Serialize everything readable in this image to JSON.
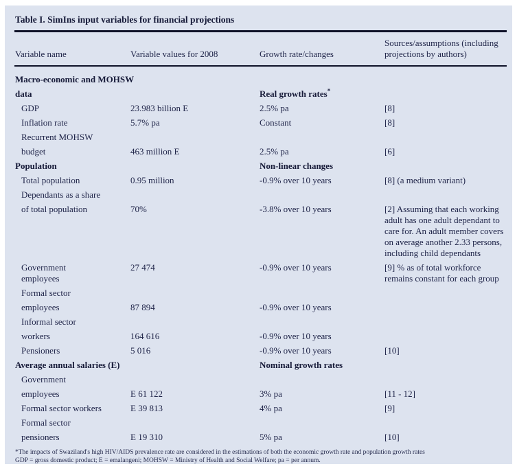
{
  "colors": {
    "panel_background": "#dde3ef",
    "text": "#21264a",
    "rule": "#0f1228"
  },
  "table": {
    "title": "Table I. SimIns input variables for financial projections",
    "columns": [
      "Variable name",
      "Variable values for 2008",
      "Growth rate/changes",
      "Sources/assumptions (including\nprojections by authors)"
    ],
    "rows": [
      {
        "cells": [
          "Macro-economic and MOHSW",
          "",
          "",
          ""
        ],
        "bold": true
      },
      {
        "cells": [
          "data",
          "",
          "Real growth rates*",
          ""
        ],
        "bold": true
      },
      {
        "cells": [
          "GDP",
          "23.983 billion E",
          "2.5% pa",
          "[8]"
        ],
        "indent": true
      },
      {
        "cells": [
          "Inflation rate",
          "5.7% pa",
          "Constant",
          "[8]"
        ],
        "indent": true
      },
      {
        "cells": [
          "Recurrent MOHSW",
          "",
          "",
          ""
        ],
        "indent": true
      },
      {
        "cells": [
          "budget",
          "463 million E",
          "2.5% pa",
          "[6]"
        ],
        "indent": true
      },
      {
        "cells": [
          "Population",
          "",
          "Non-linear changes",
          ""
        ],
        "bold": true
      },
      {
        "cells": [
          "Total population",
          "0.95 million",
          "-0.9% over 10 years",
          "[8] (a medium variant)"
        ],
        "indent": true
      },
      {
        "cells": [
          "Dependants as a share",
          "",
          "",
          ""
        ],
        "indent": true
      },
      {
        "cells": [
          "of total population",
          "70%",
          "-3.8% over 10 years",
          "[2] Assuming that each working"
        ],
        "indent": true
      },
      {
        "cells": [
          "",
          "",
          "",
          "adult has one adult dependant to"
        ],
        "tight": true
      },
      {
        "cells": [
          "",
          "",
          "",
          "care for. An adult member covers"
        ],
        "tight": true
      },
      {
        "cells": [
          "",
          "",
          "",
          "on average another 2.33 persons,"
        ],
        "tight": true
      },
      {
        "cells": [
          "",
          "",
          "",
          "including child dependants"
        ],
        "tight": true
      },
      {
        "cells": [
          "Government",
          "27 474",
          "-0.9% over 10 years",
          "[9] % as of total workforce"
        ],
        "indent": true
      },
      {
        "cells": [
          "employees",
          "",
          "",
          "remains constant for each group"
        ],
        "indent": true,
        "tight": true
      },
      {
        "cells": [
          "Formal sector",
          "",
          "",
          ""
        ],
        "indent": true
      },
      {
        "cells": [
          "employees",
          "87 894",
          "-0.9% over 10 years",
          ""
        ],
        "indent": true
      },
      {
        "cells": [
          "Informal sector",
          "",
          "",
          ""
        ],
        "indent": true
      },
      {
        "cells": [
          "workers",
          "164 616",
          "-0.9% over 10 years",
          ""
        ],
        "indent": true
      },
      {
        "cells": [
          "Pensioners",
          "5 016",
          "-0.9% over 10 years",
          "[10]"
        ],
        "indent": true
      },
      {
        "cells": [
          "Average annual salaries (E)",
          "",
          "Nominal growth rates",
          ""
        ],
        "bold": true
      },
      {
        "cells": [
          "Government",
          "",
          "",
          ""
        ],
        "indent": true
      },
      {
        "cells": [
          "employees",
          "E 61 122",
          "3% pa",
          "[11 - 12]"
        ],
        "indent": true
      },
      {
        "cells": [
          "Formal sector workers",
          "E 39 813",
          "4% pa",
          "[9]"
        ],
        "indent": true
      },
      {
        "cells": [
          "Formal sector",
          "",
          "",
          ""
        ],
        "indent": true
      },
      {
        "cells": [
          "pensioners",
          "E 19 310",
          "5% pa",
          "[10]"
        ],
        "indent": true
      }
    ],
    "footnotes": [
      "*The impacts of Swaziland's high HIV/AIDS prevalence rate are considered in the estimations of both the economic growth rate and population growth rates",
      "GDP = gross domestic product; E = emalangeni; MOHSW = Ministry of Health and Social Welfare; pa = per annum."
    ]
  }
}
